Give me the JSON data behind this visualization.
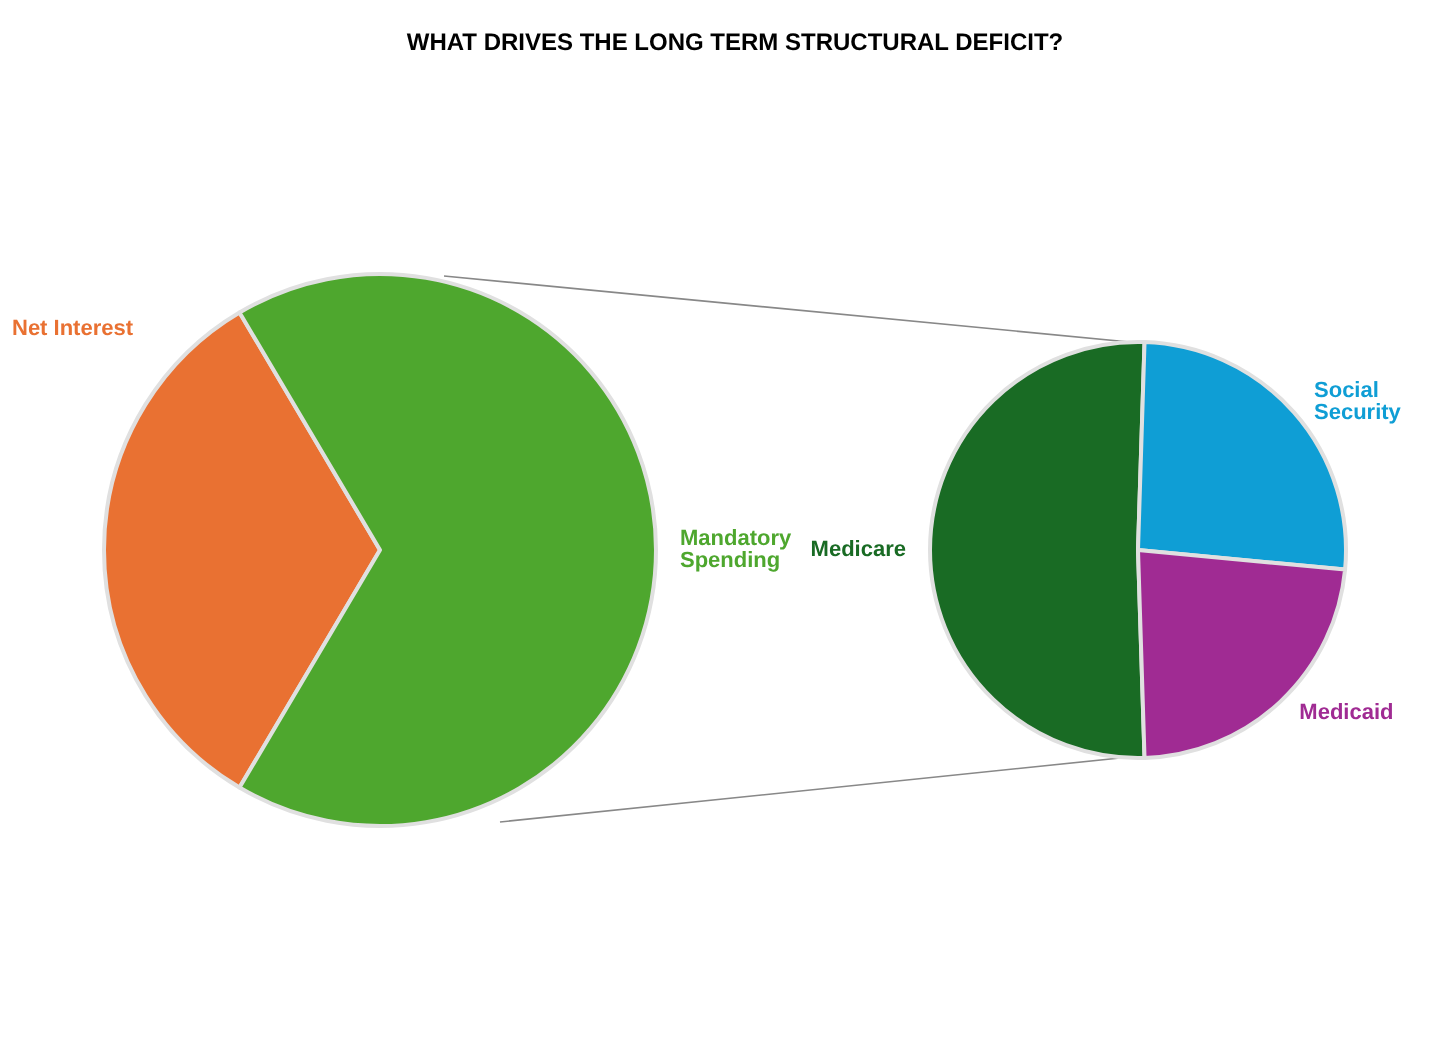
{
  "chart_data": [
    {
      "type": "pie",
      "title": "WHAT DRIVES THE LONG TERM STRUCTURAL DEFICIT?",
      "categories": [
        "Net Interest",
        "Mandatory Spending"
      ],
      "values": [
        33,
        67
      ],
      "colors": [
        "#e97132",
        "#4ea72e"
      ]
    },
    {
      "type": "pie",
      "categories": [
        "Medicare",
        "Social Security",
        "Medicaid"
      ],
      "values": [
        51,
        26,
        23
      ],
      "colors": [
        "#196b24",
        "#0f9ed5",
        "#a02b93"
      ]
    }
  ]
}
